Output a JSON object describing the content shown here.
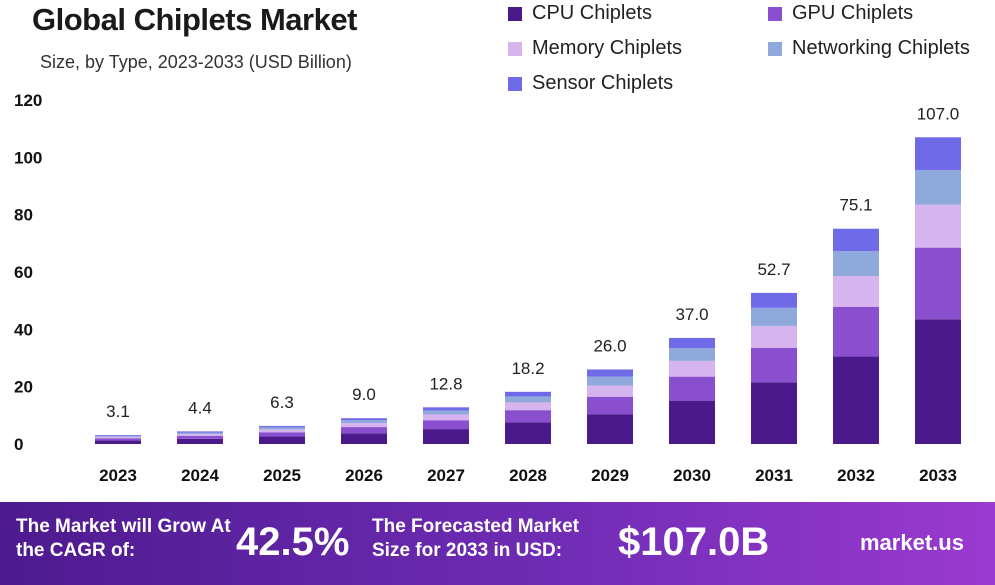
{
  "header": {
    "title": "Global Chiplets Market",
    "subtitle": "Size, by Type, 2023-2033 (USD Billion)"
  },
  "colors": {
    "cpu": "#4b1a8a",
    "gpu": "#8a4fcf",
    "memory": "#d6b4ee",
    "networking": "#8fa9dc",
    "sensor": "#6f6ae8"
  },
  "chart_data": {
    "type": "bar",
    "stacked": true,
    "title": "Global Chiplets Market",
    "subtitle": "Size, by Type, 2023-2033 (USD Billion)",
    "xlabel": "",
    "ylabel": "",
    "ylim": [
      0,
      120
    ],
    "yticks": [
      "0",
      "20",
      "40",
      "60",
      "80",
      "100",
      "120"
    ],
    "categories": [
      "2023",
      "2024",
      "2025",
      "2026",
      "2027",
      "2028",
      "2029",
      "2030",
      "2031",
      "2032",
      "2033"
    ],
    "totals": [
      "3.1",
      "4.4",
      "6.3",
      "9.0",
      "12.8",
      "18.2",
      "26.0",
      "37.0",
      "52.7",
      "75.1",
      "107.0"
    ],
    "legend_position": "top-right",
    "series": [
      {
        "name": "CPU Chiplets",
        "values": [
          1.2,
          1.8,
          2.6,
          3.7,
          5.2,
          7.6,
          10.4,
          15.0,
          21.5,
          30.5,
          43.5
        ]
      },
      {
        "name": "GPU Chiplets",
        "values": [
          0.8,
          1.0,
          1.5,
          2.2,
          3.1,
          4.2,
          6.1,
          8.5,
          12.0,
          17.3,
          25.0
        ]
      },
      {
        "name": "Memory Chiplets",
        "values": [
          0.5,
          0.7,
          1.0,
          1.4,
          2.0,
          2.7,
          3.9,
          5.5,
          7.7,
          10.8,
          15.0
        ]
      },
      {
        "name": "Networking Chiplets",
        "values": [
          0.3,
          0.5,
          0.7,
          1.0,
          1.4,
          2.1,
          3.1,
          4.5,
          6.3,
          8.7,
          12.0
        ]
      },
      {
        "name": "Sensor Chiplets",
        "values": [
          0.3,
          0.4,
          0.5,
          0.7,
          1.1,
          1.6,
          2.5,
          3.5,
          5.2,
          7.8,
          11.5
        ]
      }
    ]
  },
  "footer": {
    "cagr_label": "The Market will Grow At the CAGR of:",
    "cagr_value": "42.5%",
    "forecast_label": "The Forecasted Market Size for 2033 in USD:",
    "forecast_value": "$107.0B",
    "brand": "market.us"
  }
}
